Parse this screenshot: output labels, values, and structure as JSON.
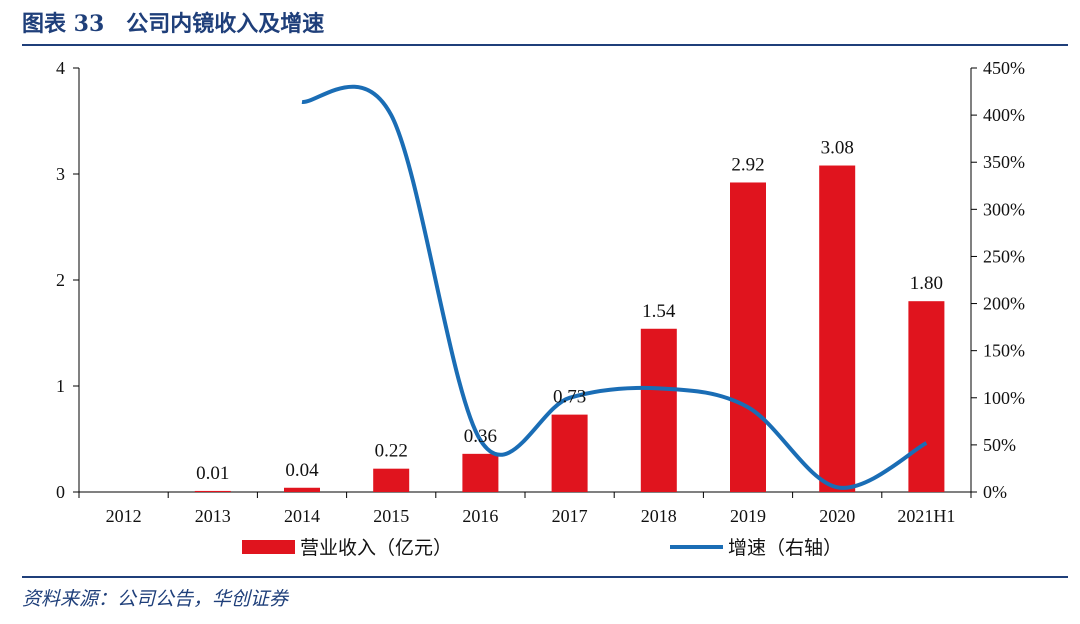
{
  "header": {
    "title": "图表 33　公司内镜收入及增速"
  },
  "footer": {
    "source": "资料来源：公司公告，华创证券"
  },
  "chart_data": {
    "type": "bar",
    "categories": [
      "2012",
      "2013",
      "2014",
      "2015",
      "2016",
      "2017",
      "2018",
      "2019",
      "2020",
      "2021H1"
    ],
    "series": [
      {
        "name": "营业收入（亿元）",
        "type": "bar",
        "axis": "left",
        "color": "#e0141e",
        "values": [
          0,
          0.01,
          0.04,
          0.22,
          0.36,
          0.73,
          1.54,
          2.92,
          3.08,
          1.8
        ],
        "labels": [
          "",
          "0.01",
          "0.04",
          "0.22",
          "0.36",
          "0.73",
          "1.54",
          "2.92",
          "3.08",
          "1.80"
        ]
      },
      {
        "name": "增速（右轴）",
        "type": "line",
        "axis": "right",
        "color": "#1a6db5",
        "values": [
          null,
          null,
          4.14,
          4.0,
          0.55,
          1.0,
          1.1,
          0.9,
          0.05,
          0.52
        ]
      }
    ],
    "y_left": {
      "min": 0,
      "max": 4,
      "ticks": [
        "0",
        "1",
        "2",
        "3",
        "4"
      ]
    },
    "y_right": {
      "min": 0,
      "max": 4.5,
      "ticks": [
        "0%",
        "50%",
        "100%",
        "150%",
        "200%",
        "250%",
        "300%",
        "350%",
        "400%",
        "450%"
      ]
    },
    "legend_position": "bottom",
    "grid": false
  }
}
